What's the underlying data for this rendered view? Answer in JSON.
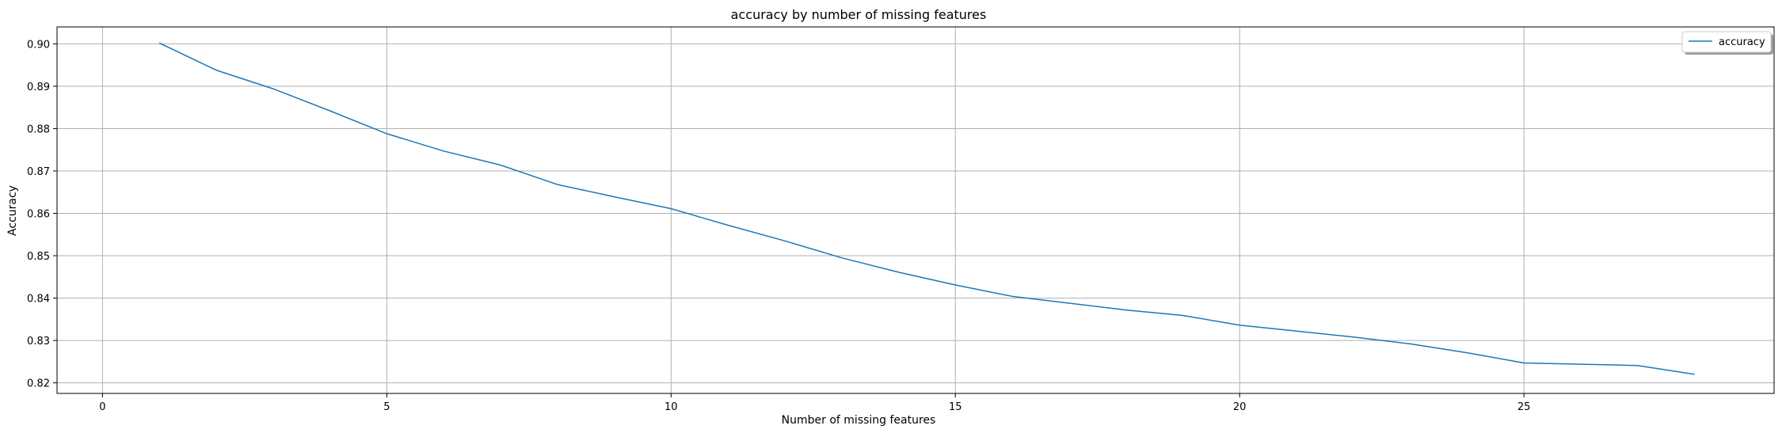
{
  "chart_data": {
    "type": "line",
    "title": "accuracy by number of missing features",
    "xlabel": "Number of missing features",
    "ylabel": "Accuracy",
    "xlim": [
      -0.8,
      29.4
    ],
    "ylim": [
      0.8175,
      0.904
    ],
    "xticks": [
      0,
      5,
      10,
      15,
      20,
      25
    ],
    "xtick_labels": [
      "0",
      "5",
      "10",
      "15",
      "20",
      "25"
    ],
    "yticks": [
      0.82,
      0.83,
      0.84,
      0.85,
      0.86,
      0.87,
      0.88,
      0.89,
      0.9
    ],
    "ytick_labels": [
      "0.82",
      "0.83",
      "0.84",
      "0.85",
      "0.86",
      "0.87",
      "0.88",
      "0.89",
      "0.90"
    ],
    "grid": true,
    "legend_position": "top-right",
    "series": [
      {
        "name": "accuracy",
        "color": "#1f77b4",
        "x": [
          1,
          2,
          3,
          4,
          5,
          6,
          7,
          8,
          9,
          10,
          11,
          12,
          13,
          14,
          15,
          16,
          17,
          18,
          19,
          20,
          21,
          22,
          23,
          24,
          25,
          26,
          27,
          28
        ],
        "y": [
          0.9002,
          0.8938,
          0.8894,
          0.8842,
          0.8788,
          0.8747,
          0.8714,
          0.8668,
          0.8639,
          0.8611,
          0.8572,
          0.8535,
          0.8495,
          0.8461,
          0.8431,
          0.8404,
          0.8388,
          0.8372,
          0.8359,
          0.8336,
          0.8322,
          0.8308,
          0.8292,
          0.8271,
          0.8247,
          0.8244,
          0.8241,
          0.822
        ]
      }
    ]
  }
}
